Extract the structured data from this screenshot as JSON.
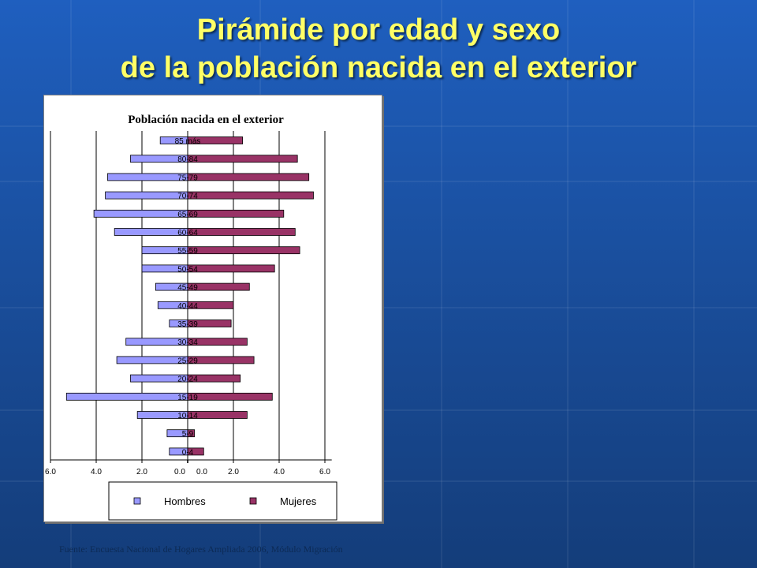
{
  "slide": {
    "title_line1": "Pirámide por edad y sexo",
    "title_line2": "de la población nacida en el exterior",
    "source": "Fuente: Encuesta Nacional de Hogares Ampliada 2006, Módulo Migración"
  },
  "colors": {
    "hombres": "#9999ff",
    "mujeres": "#993366",
    "title": "#ffff66"
  },
  "chart_data": {
    "type": "bar",
    "orientation": "horizontal-population-pyramid",
    "title": "Población nacida en el exterior",
    "categories": [
      "85 más",
      "80-84",
      "75-79",
      "70-74",
      "65-69",
      "60-64",
      "55-59",
      "50-54",
      "45-49",
      "40-44",
      "35-39",
      "30-34",
      "25-29",
      "20-24",
      "15-19",
      "10-14",
      "5-9",
      "0-4"
    ],
    "series": [
      {
        "name": "Hombres",
        "values": [
          1.2,
          2.5,
          3.5,
          3.6,
          4.1,
          3.2,
          2.0,
          2.0,
          1.4,
          1.3,
          0.8,
          2.7,
          3.1,
          2.5,
          5.3,
          2.2,
          0.9,
          0.8
        ]
      },
      {
        "name": "Mujeres",
        "values": [
          2.4,
          4.8,
          5.3,
          5.5,
          4.2,
          4.7,
          4.9,
          3.8,
          2.7,
          2.0,
          1.9,
          2.6,
          2.9,
          2.3,
          3.7,
          2.6,
          0.3,
          0.7
        ]
      }
    ],
    "x_ticks": [
      "6.0",
      "4.0",
      "2.0",
      "0.0",
      "0.0",
      "2.0",
      "4.0",
      "6.0"
    ],
    "xlim": [
      -6,
      6
    ],
    "grid": true,
    "legend_position": "bottom"
  }
}
